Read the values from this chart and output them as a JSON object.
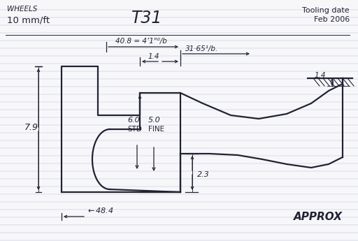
{
  "title": "T31",
  "top_left_line1": "WHEELS",
  "top_left_line2": "10 mm/ft",
  "top_right_line1": "Tooling date",
  "top_right_line2": "Feb 2006",
  "dim_40_8": "40.8 = 4’1\"⁰/b",
  "dim_31_65": "31·65¹/b.",
  "dim_1_4_inner": "1.4",
  "dim_7_9": "7.9",
  "dim_6_0": "6.0",
  "dim_5_0": "5.0",
  "dim_std": "STD",
  "dim_fine": "FINE",
  "dim_2_3": "2.3",
  "dim_1_4_right": "1.4",
  "dim_48_4": "48.4",
  "approx_text": "APPROX",
  "bg_color": "#f7f7fa",
  "line_color": "#222233",
  "line_color_light": "#8899bb",
  "lw_main": 1.6,
  "lw_dim": 0.9,
  "lw_rule": 0.35
}
